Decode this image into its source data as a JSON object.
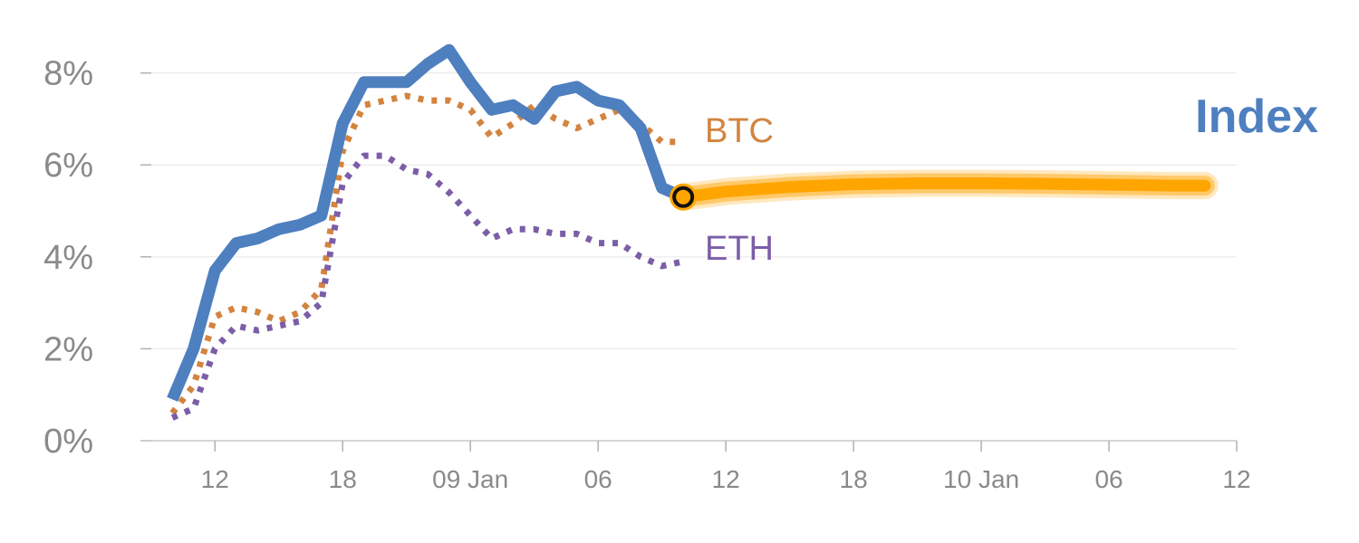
{
  "chart_data": {
    "type": "line",
    "y_ticks": [
      {
        "value": 0,
        "label": "0%"
      },
      {
        "value": 2,
        "label": "2%"
      },
      {
        "value": 4,
        "label": "4%"
      },
      {
        "value": 6,
        "label": "6%"
      },
      {
        "value": 8,
        "label": "8%"
      }
    ],
    "ylim": [
      0,
      8.8
    ],
    "xlim": [
      -3.5,
      48
    ],
    "x_ticks": [
      {
        "value": 0,
        "label": "12"
      },
      {
        "value": 6,
        "label": "18"
      },
      {
        "value": 12,
        "label": "09 Jan"
      },
      {
        "value": 18,
        "label": "06"
      },
      {
        "value": 24,
        "label": "12"
      },
      {
        "value": 30,
        "label": "18"
      },
      {
        "value": 36,
        "label": "10 Jan"
      },
      {
        "value": 42,
        "label": "06"
      },
      {
        "value": 48,
        "label": "12"
      }
    ],
    "grid": true,
    "series": [
      {
        "name": "Index",
        "style": "solid",
        "color": "#4e7fbf",
        "x": [
          -2,
          -1,
          0,
          1,
          2,
          3,
          4,
          5,
          6,
          7,
          8,
          9,
          10,
          11,
          12,
          13,
          14,
          15,
          16,
          17,
          18,
          19,
          20,
          21,
          22
        ],
        "values": [
          0.9,
          2.0,
          3.7,
          4.3,
          4.4,
          4.6,
          4.7,
          4.9,
          6.9,
          7.8,
          7.8,
          7.8,
          8.2,
          8.5,
          7.8,
          7.2,
          7.3,
          7.0,
          7.6,
          7.7,
          7.4,
          7.3,
          6.8,
          5.5,
          5.3
        ]
      },
      {
        "name": "BTC",
        "style": "dotted",
        "color": "#d3843f",
        "x": [
          -2,
          -1,
          0,
          1,
          2,
          3,
          4,
          5,
          6,
          7,
          8,
          9,
          10,
          11,
          12,
          13,
          14,
          15,
          16,
          17,
          18,
          19,
          20,
          21,
          22
        ],
        "values": [
          0.6,
          1.2,
          2.7,
          2.9,
          2.8,
          2.6,
          2.8,
          3.3,
          6.3,
          7.3,
          7.4,
          7.5,
          7.4,
          7.4,
          7.2,
          6.6,
          6.9,
          7.3,
          7.0,
          6.8,
          7.0,
          7.2,
          6.9,
          6.5,
          6.5
        ]
      },
      {
        "name": "ETH",
        "style": "dotted",
        "color": "#7b5ea7",
        "x": [
          -2,
          -1,
          0,
          1,
          2,
          3,
          4,
          5,
          6,
          7,
          8,
          9,
          10,
          11,
          12,
          13,
          14,
          15,
          16,
          17,
          18,
          19,
          20,
          21,
          22
        ],
        "values": [
          0.5,
          0.7,
          2.0,
          2.5,
          2.4,
          2.5,
          2.6,
          3.0,
          5.6,
          6.2,
          6.2,
          5.9,
          5.8,
          5.4,
          4.9,
          4.4,
          4.6,
          4.6,
          4.5,
          4.5,
          4.3,
          4.3,
          4.0,
          3.8,
          3.9
        ]
      },
      {
        "name": "",
        "style": "band",
        "color": "#ffa500",
        "x": [
          22,
          24,
          27,
          30,
          33,
          36,
          39,
          42,
          45,
          46.5
        ],
        "values": [
          5.3,
          5.42,
          5.52,
          5.58,
          5.6,
          5.6,
          5.59,
          5.57,
          5.55,
          5.55
        ]
      }
    ],
    "highlight_point": {
      "x": 22,
      "value": 5.3
    },
    "annotations": [
      {
        "text": "BTC",
        "color": "#d3843f"
      },
      {
        "text": "ETH",
        "color": "#7b5ea7"
      },
      {
        "text": "Index",
        "color": "#4e7fbf"
      }
    ]
  }
}
